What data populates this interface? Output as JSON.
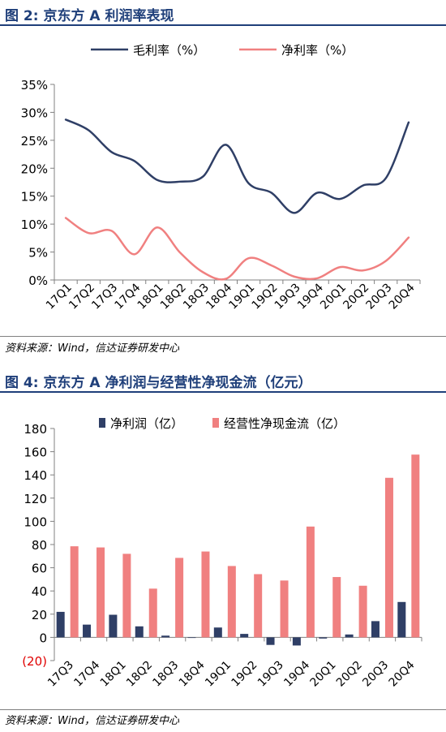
{
  "fig2": {
    "title": "图 2:  京东方 A 利润率表现",
    "source": "资料来源：Wind，信达证券研发中心"
  },
  "fig4": {
    "title": "图 4:  京东方 A 净利润与经营性净现金流（亿元）",
    "source": "资料来源：Wind，信达证券研发中心"
  },
  "colors": {
    "navy": "#2f3f66",
    "salmon": "#f08080",
    "title": "#1f3f7a",
    "negLabel": "#e00000"
  },
  "chart_data": [
    {
      "type": "line",
      "title": "",
      "xlabel": "",
      "ylabel": "",
      "categories": [
        "17Q1",
        "17Q2",
        "17Q3",
        "17Q4",
        "18Q1",
        "18Q2",
        "18Q3",
        "18Q4",
        "19Q1",
        "19Q2",
        "19Q3",
        "19Q4",
        "20Q1",
        "20Q2",
        "20Q3",
        "20Q4"
      ],
      "yticks": [
        "35%",
        "30%",
        "25%",
        "20%",
        "15%",
        "10%",
        "5%",
        "0%"
      ],
      "ylim": [
        0,
        35
      ],
      "legend_position": "top",
      "series": [
        {
          "name": "毛利率（%）",
          "values": [
            28.7,
            26.8,
            22.9,
            21.3,
            17.9,
            17.6,
            18.5,
            24.2,
            17.3,
            15.6,
            12.0,
            15.6,
            14.5,
            16.9,
            18.2,
            28.2
          ]
        },
        {
          "name": "净利率（%）",
          "values": [
            11.1,
            8.4,
            8.8,
            4.6,
            9.4,
            4.9,
            1.4,
            0.2,
            3.9,
            2.6,
            0.6,
            0.3,
            2.3,
            1.7,
            3.4,
            7.6
          ]
        }
      ]
    },
    {
      "type": "bar",
      "title": "",
      "xlabel": "",
      "ylabel": "",
      "categories": [
        "17Q3",
        "17Q4",
        "18Q1",
        "18Q2",
        "18Q3",
        "18Q4",
        "19Q1",
        "19Q2",
        "19Q3",
        "19Q4",
        "20Q1",
        "20Q2",
        "20Q3",
        "20Q4"
      ],
      "yticks": [
        "180",
        "160",
        "140",
        "120",
        "100",
        "80",
        "60",
        "40",
        "20",
        "0",
        "(20)"
      ],
      "ylim": [
        -20,
        180
      ],
      "legend_position": "top",
      "series": [
        {
          "name": "净利润（亿）",
          "values": [
            22,
            11,
            19.5,
            9.5,
            1.5,
            -0.5,
            8.5,
            3,
            -6.5,
            -7,
            -1,
            2.5,
            14,
            30.5
          ]
        },
        {
          "name": "经营性净现金流（亿）",
          "values": [
            78.5,
            77.5,
            72,
            42,
            68.5,
            74,
            61.5,
            54.5,
            49,
            95.5,
            52,
            44.5,
            137.5,
            157.5
          ]
        }
      ]
    }
  ]
}
